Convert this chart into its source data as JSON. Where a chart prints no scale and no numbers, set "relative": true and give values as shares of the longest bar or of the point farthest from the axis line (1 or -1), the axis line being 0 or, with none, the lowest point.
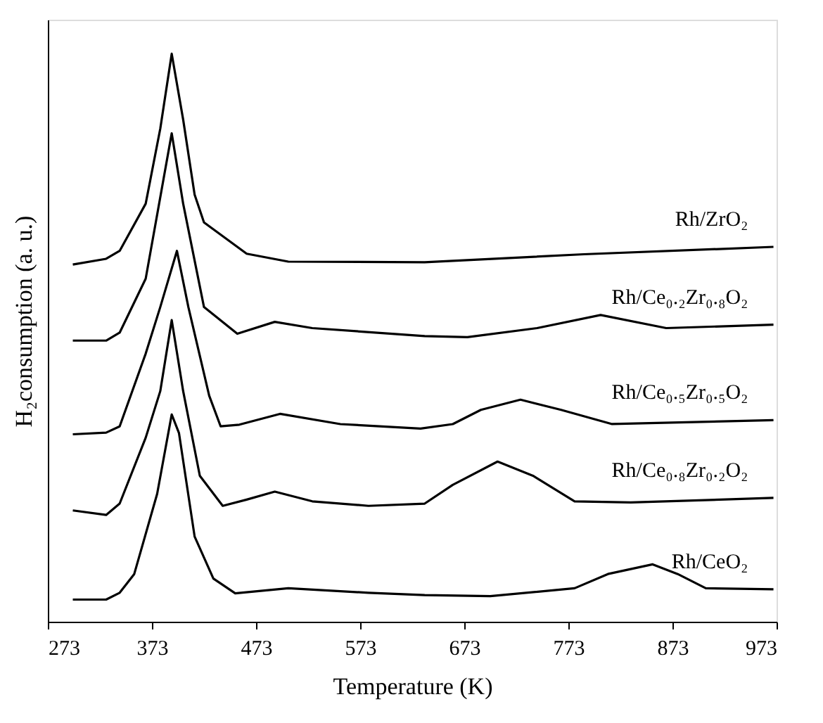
{
  "chart_data": {
    "type": "line",
    "relative": true,
    "xlabel": "Temperature (K)",
    "ylabel": "H₂consumption (a. u.)",
    "xlim": [
      273,
      973
    ],
    "xticks": [
      273,
      373,
      473,
      573,
      673,
      773,
      873,
      973
    ],
    "grid": false,
    "legend": false,
    "tick_labels": "x",
    "line_style": "solid",
    "marker": "none",
    "series": [
      {
        "name": "Rh/ZrO₂",
        "color": "#000000",
        "x": [
          297,
          329,
          342,
          367,
          381,
          392,
          403,
          414,
          423,
          464,
          504,
          635,
          788,
          970
        ],
        "values": [
          0.629,
          0.639,
          0.653,
          0.736,
          0.868,
          1.0,
          0.884,
          0.752,
          0.703,
          0.648,
          0.634,
          0.633,
          0.647,
          0.66
        ]
      },
      {
        "name": "Rh/Ce₀.₂Zr₀.₈O₂",
        "color": "#000000",
        "x": [
          297,
          329,
          342,
          367,
          392,
          403,
          423,
          455,
          491,
          527,
          635,
          676,
          743,
          804,
          867,
          970
        ],
        "values": [
          0.495,
          0.495,
          0.509,
          0.604,
          0.86,
          0.736,
          0.554,
          0.507,
          0.528,
          0.517,
          0.503,
          0.501,
          0.517,
          0.54,
          0.517,
          0.523
        ]
      },
      {
        "name": "Rh/Ce₀.₅Zr₀.₅O₂",
        "color": "#000000",
        "x": [
          297,
          329,
          342,
          367,
          381,
          397,
          408,
          428,
          439,
          457,
          496,
          554,
          631,
          662,
          689,
          727,
          766,
          815,
          970
        ],
        "values": [
          0.33,
          0.333,
          0.344,
          0.472,
          0.554,
          0.653,
          0.554,
          0.398,
          0.344,
          0.347,
          0.366,
          0.348,
          0.34,
          0.348,
          0.373,
          0.391,
          0.373,
          0.348,
          0.355
        ]
      },
      {
        "name": "Rh/Ce₀.₈Zr₀.₂O₂",
        "color": "#000000",
        "x": [
          297,
          329,
          342,
          367,
          381,
          392,
          403,
          419,
          441,
          464,
          491,
          527,
          581,
          635,
          662,
          705,
          739,
          779,
          833,
          970
        ],
        "values": [
          0.196,
          0.188,
          0.208,
          0.324,
          0.406,
          0.531,
          0.406,
          0.257,
          0.204,
          0.215,
          0.229,
          0.212,
          0.204,
          0.208,
          0.241,
          0.282,
          0.257,
          0.212,
          0.21,
          0.218
        ]
      },
      {
        "name": "Rh/CeO₂",
        "color": "#000000",
        "x": [
          297,
          329,
          342,
          356,
          378,
          392,
          399,
          414,
          432,
          453,
          504,
          581,
          635,
          698,
          779,
          811,
          854,
          878,
          905,
          970
        ],
        "values": [
          0.039,
          0.039,
          0.051,
          0.084,
          0.225,
          0.365,
          0.332,
          0.15,
          0.076,
          0.05,
          0.059,
          0.051,
          0.047,
          0.045,
          0.059,
          0.084,
          0.101,
          0.084,
          0.059,
          0.057
        ]
      }
    ]
  }
}
